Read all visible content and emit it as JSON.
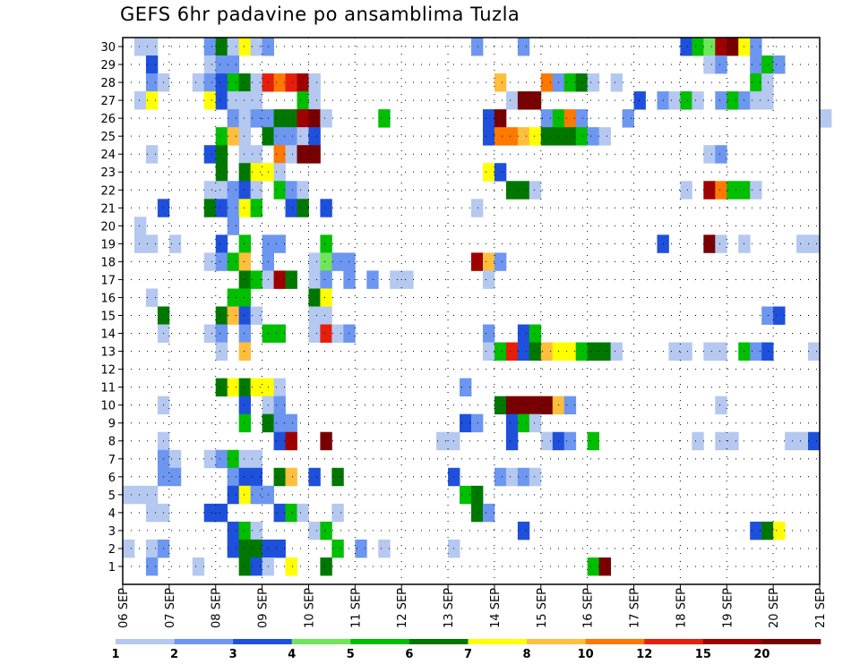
{
  "chart_data": {
    "type": "heatmap",
    "title": "GEFS 6hr padavine po ansamblima Tuzla",
    "x_tick_labels": [
      "06 SEP",
      "07 SEP",
      "08 SEP",
      "09 SEP",
      "10 SEP",
      "11 SEP",
      "12 SEP",
      "13 SEP",
      "14 SEP",
      "15 SEP",
      "16 SEP",
      "17 SEP",
      "18 SEP",
      "19 SEP",
      "20 SEP",
      "21 SEP"
    ],
    "y_tick_labels": [
      1,
      2,
      3,
      4,
      5,
      6,
      7,
      8,
      9,
      10,
      11,
      12,
      13,
      14,
      15,
      16,
      17,
      18,
      19,
      20,
      21,
      22,
      23,
      24,
      25,
      26,
      27,
      28,
      29,
      30
    ],
    "members": 30,
    "steps_per_day": 4,
    "grid": "dotted",
    "colorbar": {
      "levels": [
        "1",
        "2",
        "3",
        "4",
        "5",
        "6",
        "7",
        "8",
        "10",
        "12",
        "15",
        "20"
      ],
      "colors": [
        "#b4c8f0",
        "#6c96f0",
        "#1e50dc",
        "#6ee65a",
        "#00be00",
        "#007800",
        "#ffff00",
        "#ffbe3c",
        "#ff7800",
        "#e61e0a",
        "#a00000",
        "#780000"
      ]
    },
    "cells": [
      [
        30,
        1,
        1
      ],
      [
        30,
        2,
        1
      ],
      [
        30,
        7,
        2
      ],
      [
        30,
        8,
        6
      ],
      [
        30,
        9,
        1
      ],
      [
        30,
        10,
        7
      ],
      [
        30,
        11,
        1
      ],
      [
        30,
        12,
        2
      ],
      [
        30,
        30,
        2
      ],
      [
        30,
        34,
        2
      ],
      [
        30,
        48,
        3
      ],
      [
        30,
        49,
        5
      ],
      [
        30,
        50,
        4
      ],
      [
        30,
        51,
        11
      ],
      [
        30,
        52,
        12
      ],
      [
        30,
        53,
        7
      ],
      [
        30,
        54,
        2
      ],
      [
        29,
        2,
        3
      ],
      [
        29,
        7,
        1
      ],
      [
        29,
        8,
        2
      ],
      [
        29,
        9,
        2
      ],
      [
        29,
        50,
        1
      ],
      [
        29,
        51,
        2
      ],
      [
        29,
        54,
        2
      ],
      [
        29,
        55,
        5
      ],
      [
        29,
        56,
        2
      ],
      [
        28,
        2,
        2
      ],
      [
        28,
        3,
        1
      ],
      [
        28,
        6,
        1
      ],
      [
        28,
        7,
        2
      ],
      [
        28,
        8,
        3
      ],
      [
        28,
        9,
        5
      ],
      [
        28,
        10,
        6
      ],
      [
        28,
        11,
        1
      ],
      [
        28,
        12,
        10
      ],
      [
        28,
        13,
        9
      ],
      [
        28,
        14,
        10
      ],
      [
        28,
        15,
        11
      ],
      [
        28,
        16,
        1
      ],
      [
        28,
        32,
        8
      ],
      [
        28,
        36,
        9
      ],
      [
        28,
        37,
        2
      ],
      [
        28,
        38,
        5
      ],
      [
        28,
        39,
        6
      ],
      [
        28,
        40,
        1
      ],
      [
        28,
        42,
        1
      ],
      [
        28,
        54,
        5
      ],
      [
        28,
        55,
        1
      ],
      [
        27,
        1,
        1
      ],
      [
        27,
        2,
        7
      ],
      [
        27,
        7,
        7
      ],
      [
        27,
        8,
        3
      ],
      [
        27,
        9,
        1
      ],
      [
        27,
        10,
        1
      ],
      [
        27,
        11,
        1
      ],
      [
        27,
        15,
        5
      ],
      [
        27,
        16,
        1
      ],
      [
        27,
        33,
        1
      ],
      [
        27,
        34,
        12
      ],
      [
        27,
        35,
        12
      ],
      [
        27,
        44,
        3
      ],
      [
        27,
        46,
        2
      ],
      [
        27,
        47,
        1
      ],
      [
        27,
        48,
        5
      ],
      [
        27,
        49,
        1
      ],
      [
        27,
        51,
        2
      ],
      [
        27,
        52,
        5
      ],
      [
        27,
        53,
        2
      ],
      [
        27,
        54,
        1
      ],
      [
        27,
        55,
        1
      ],
      [
        26,
        9,
        2
      ],
      [
        26,
        10,
        1
      ],
      [
        26,
        11,
        2
      ],
      [
        26,
        12,
        2
      ],
      [
        26,
        13,
        6
      ],
      [
        26,
        14,
        6
      ],
      [
        26,
        15,
        11
      ],
      [
        26,
        16,
        12
      ],
      [
        26,
        17,
        1
      ],
      [
        26,
        22,
        5
      ],
      [
        26,
        31,
        3
      ],
      [
        26,
        32,
        12
      ],
      [
        26,
        36,
        2
      ],
      [
        26,
        37,
        5
      ],
      [
        26,
        38,
        9
      ],
      [
        26,
        39,
        2
      ],
      [
        26,
        43,
        2
      ],
      [
        26,
        60,
        1
      ],
      [
        25,
        8,
        5
      ],
      [
        25,
        9,
        8
      ],
      [
        25,
        10,
        1
      ],
      [
        25,
        12,
        6
      ],
      [
        25,
        13,
        2
      ],
      [
        25,
        14,
        2
      ],
      [
        25,
        15,
        1
      ],
      [
        25,
        16,
        3
      ],
      [
        25,
        31,
        3
      ],
      [
        25,
        32,
        9
      ],
      [
        25,
        33,
        9
      ],
      [
        25,
        34,
        8
      ],
      [
        25,
        35,
        7
      ],
      [
        25,
        36,
        6
      ],
      [
        25,
        37,
        6
      ],
      [
        25,
        38,
        6
      ],
      [
        25,
        39,
        5
      ],
      [
        25,
        40,
        2
      ],
      [
        25,
        41,
        1
      ],
      [
        24,
        2,
        1
      ],
      [
        24,
        7,
        3
      ],
      [
        24,
        8,
        6
      ],
      [
        24,
        10,
        1
      ],
      [
        24,
        11,
        1
      ],
      [
        24,
        13,
        9
      ],
      [
        24,
        14,
        1
      ],
      [
        24,
        15,
        12
      ],
      [
        24,
        16,
        12
      ],
      [
        24,
        50,
        1
      ],
      [
        24,
        51,
        2
      ],
      [
        23,
        8,
        6
      ],
      [
        23,
        10,
        6
      ],
      [
        23,
        11,
        7
      ],
      [
        23,
        12,
        7
      ],
      [
        23,
        13,
        1
      ],
      [
        23,
        31,
        7
      ],
      [
        23,
        32,
        3
      ],
      [
        22,
        7,
        1
      ],
      [
        22,
        8,
        1
      ],
      [
        22,
        9,
        2
      ],
      [
        22,
        10,
        3
      ],
      [
        22,
        11,
        1
      ],
      [
        22,
        13,
        5
      ],
      [
        22,
        14,
        2
      ],
      [
        22,
        15,
        1
      ],
      [
        22,
        33,
        6
      ],
      [
        22,
        34,
        6
      ],
      [
        22,
        35,
        1
      ],
      [
        22,
        48,
        1
      ],
      [
        22,
        50,
        11
      ],
      [
        22,
        51,
        9
      ],
      [
        22,
        52,
        5
      ],
      [
        22,
        53,
        5
      ],
      [
        22,
        54,
        1
      ],
      [
        21,
        3,
        3
      ],
      [
        21,
        7,
        6
      ],
      [
        21,
        8,
        3
      ],
      [
        21,
        9,
        2
      ],
      [
        21,
        10,
        7
      ],
      [
        21,
        11,
        5
      ],
      [
        21,
        14,
        3
      ],
      [
        21,
        15,
        6
      ],
      [
        21,
        17,
        3
      ],
      [
        21,
        30,
        1
      ],
      [
        20,
        1,
        1
      ],
      [
        20,
        9,
        2
      ],
      [
        19,
        1,
        1
      ],
      [
        19,
        2,
        1
      ],
      [
        19,
        4,
        1
      ],
      [
        19,
        8,
        3
      ],
      [
        19,
        10,
        5
      ],
      [
        19,
        12,
        2
      ],
      [
        19,
        13,
        2
      ],
      [
        19,
        17,
        5
      ],
      [
        19,
        46,
        3
      ],
      [
        19,
        50,
        12
      ],
      [
        19,
        51,
        1
      ],
      [
        19,
        53,
        1
      ],
      [
        19,
        58,
        1
      ],
      [
        19,
        59,
        1
      ],
      [
        18,
        7,
        1
      ],
      [
        18,
        8,
        2
      ],
      [
        18,
        9,
        5
      ],
      [
        18,
        10,
        8
      ],
      [
        18,
        12,
        2
      ],
      [
        18,
        16,
        1
      ],
      [
        18,
        17,
        4
      ],
      [
        18,
        18,
        2
      ],
      [
        18,
        19,
        2
      ],
      [
        18,
        30,
        11
      ],
      [
        18,
        31,
        8
      ],
      [
        18,
        32,
        2
      ],
      [
        17,
        10,
        6
      ],
      [
        17,
        11,
        5
      ],
      [
        17,
        12,
        1
      ],
      [
        17,
        13,
        11
      ],
      [
        17,
        14,
        6
      ],
      [
        17,
        16,
        1
      ],
      [
        17,
        17,
        2
      ],
      [
        17,
        19,
        2
      ],
      [
        17,
        21,
        2
      ],
      [
        17,
        23,
        1
      ],
      [
        17,
        24,
        1
      ],
      [
        17,
        31,
        1
      ],
      [
        16,
        2,
        1
      ],
      [
        16,
        9,
        5
      ],
      [
        16,
        10,
        5
      ],
      [
        16,
        16,
        6
      ],
      [
        16,
        17,
        7
      ],
      [
        15,
        3,
        6
      ],
      [
        15,
        8,
        6
      ],
      [
        15,
        9,
        8
      ],
      [
        15,
        10,
        3
      ],
      [
        15,
        11,
        1
      ],
      [
        15,
        16,
        1
      ],
      [
        15,
        17,
        1
      ],
      [
        15,
        55,
        2
      ],
      [
        15,
        56,
        3
      ],
      [
        14,
        3,
        1
      ],
      [
        14,
        7,
        1
      ],
      [
        14,
        8,
        2
      ],
      [
        14,
        10,
        2
      ],
      [
        14,
        12,
        5
      ],
      [
        14,
        13,
        5
      ],
      [
        14,
        16,
        1
      ],
      [
        14,
        17,
        10
      ],
      [
        14,
        18,
        1
      ],
      [
        14,
        19,
        2
      ],
      [
        14,
        31,
        2
      ],
      [
        14,
        34,
        3
      ],
      [
        14,
        35,
        5
      ],
      [
        13,
        8,
        1
      ],
      [
        13,
        10,
        8
      ],
      [
        13,
        31,
        1
      ],
      [
        13,
        32,
        5
      ],
      [
        13,
        33,
        10
      ],
      [
        13,
        34,
        3
      ],
      [
        13,
        35,
        6
      ],
      [
        13,
        36,
        8
      ],
      [
        13,
        37,
        7
      ],
      [
        13,
        38,
        7
      ],
      [
        13,
        39,
        5
      ],
      [
        13,
        40,
        6
      ],
      [
        13,
        41,
        6
      ],
      [
        13,
        42,
        1
      ],
      [
        13,
        47,
        1
      ],
      [
        13,
        48,
        1
      ],
      [
        13,
        50,
        1
      ],
      [
        13,
        51,
        1
      ],
      [
        13,
        53,
        5
      ],
      [
        13,
        54,
        2
      ],
      [
        13,
        55,
        3
      ],
      [
        13,
        59,
        1
      ],
      [
        11,
        8,
        6
      ],
      [
        11,
        9,
        7
      ],
      [
        11,
        10,
        6
      ],
      [
        11,
        11,
        7
      ],
      [
        11,
        12,
        7
      ],
      [
        11,
        13,
        1
      ],
      [
        11,
        29,
        2
      ],
      [
        10,
        3,
        1
      ],
      [
        10,
        10,
        3
      ],
      [
        10,
        12,
        1
      ],
      [
        10,
        13,
        2
      ],
      [
        10,
        32,
        6
      ],
      [
        10,
        33,
        12
      ],
      [
        10,
        34,
        12
      ],
      [
        10,
        35,
        12
      ],
      [
        10,
        36,
        12
      ],
      [
        10,
        37,
        8
      ],
      [
        10,
        38,
        2
      ],
      [
        10,
        51,
        1
      ],
      [
        9,
        10,
        5
      ],
      [
        9,
        12,
        6
      ],
      [
        9,
        13,
        2
      ],
      [
        9,
        14,
        2
      ],
      [
        9,
        29,
        3
      ],
      [
        9,
        30,
        2
      ],
      [
        9,
        33,
        3
      ],
      [
        9,
        34,
        5
      ],
      [
        9,
        35,
        1
      ],
      [
        8,
        3,
        1
      ],
      [
        8,
        13,
        3
      ],
      [
        8,
        14,
        11
      ],
      [
        8,
        17,
        12
      ],
      [
        8,
        27,
        1
      ],
      [
        8,
        28,
        1
      ],
      [
        8,
        33,
        3
      ],
      [
        8,
        36,
        1
      ],
      [
        8,
        37,
        3
      ],
      [
        8,
        38,
        2
      ],
      [
        8,
        40,
        5
      ],
      [
        8,
        49,
        1
      ],
      [
        8,
        51,
        1
      ],
      [
        8,
        52,
        1
      ],
      [
        8,
        57,
        1
      ],
      [
        8,
        58,
        1
      ],
      [
        8,
        59,
        3
      ],
      [
        7,
        3,
        2
      ],
      [
        7,
        4,
        1
      ],
      [
        7,
        7,
        1
      ],
      [
        7,
        8,
        2
      ],
      [
        7,
        9,
        5
      ],
      [
        7,
        10,
        1
      ],
      [
        7,
        11,
        1
      ],
      [
        6,
        3,
        2
      ],
      [
        6,
        4,
        2
      ],
      [
        6,
        9,
        2
      ],
      [
        6,
        10,
        3
      ],
      [
        6,
        11,
        3
      ],
      [
        6,
        13,
        6
      ],
      [
        6,
        14,
        8
      ],
      [
        6,
        16,
        3
      ],
      [
        6,
        18,
        6
      ],
      [
        6,
        28,
        3
      ],
      [
        6,
        32,
        2
      ],
      [
        6,
        33,
        1
      ],
      [
        6,
        34,
        2
      ],
      [
        6,
        35,
        1
      ],
      [
        5,
        0,
        1
      ],
      [
        5,
        1,
        1
      ],
      [
        5,
        2,
        1
      ],
      [
        5,
        9,
        3
      ],
      [
        5,
        10,
        7
      ],
      [
        5,
        11,
        2
      ],
      [
        5,
        12,
        2
      ],
      [
        5,
        29,
        5
      ],
      [
        5,
        30,
        6
      ],
      [
        4,
        2,
        1
      ],
      [
        4,
        3,
        1
      ],
      [
        4,
        7,
        3
      ],
      [
        4,
        8,
        3
      ],
      [
        4,
        13,
        3
      ],
      [
        4,
        14,
        5
      ],
      [
        4,
        15,
        1
      ],
      [
        4,
        18,
        1
      ],
      [
        4,
        30,
        6
      ],
      [
        4,
        31,
        2
      ],
      [
        3,
        9,
        3
      ],
      [
        3,
        10,
        5
      ],
      [
        3,
        11,
        1
      ],
      [
        3,
        16,
        1
      ],
      [
        3,
        17,
        5
      ],
      [
        3,
        34,
        3
      ],
      [
        3,
        54,
        3
      ],
      [
        3,
        55,
        6
      ],
      [
        3,
        56,
        7
      ],
      [
        2,
        0,
        1
      ],
      [
        2,
        2,
        1
      ],
      [
        2,
        3,
        2
      ],
      [
        2,
        9,
        3
      ],
      [
        2,
        10,
        6
      ],
      [
        2,
        11,
        6
      ],
      [
        2,
        12,
        3
      ],
      [
        2,
        13,
        3
      ],
      [
        2,
        18,
        5
      ],
      [
        2,
        20,
        2
      ],
      [
        2,
        22,
        1
      ],
      [
        2,
        28,
        1
      ],
      [
        1,
        2,
        2
      ],
      [
        1,
        6,
        1
      ],
      [
        1,
        10,
        6
      ],
      [
        1,
        11,
        3
      ],
      [
        1,
        12,
        1
      ],
      [
        1,
        14,
        7
      ],
      [
        1,
        17,
        6
      ],
      [
        1,
        40,
        5
      ],
      [
        1,
        41,
        12
      ]
    ]
  }
}
